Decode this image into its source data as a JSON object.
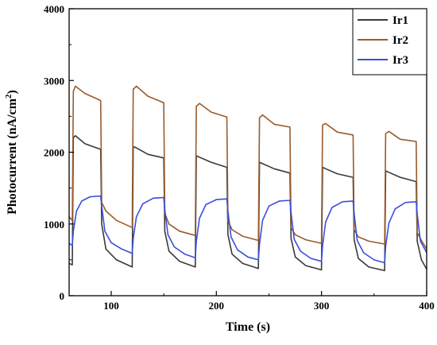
{
  "chart_data": {
    "type": "line",
    "xlabel": "Time (s)",
    "ylabel_main": "Photocurrent (nA/cm",
    "ylabel_sup": "2",
    "ylabel_tail": ")",
    "xlim": [
      60,
      400
    ],
    "ylim": [
      0,
      4000
    ],
    "x_ticks": [
      100,
      200,
      300,
      400
    ],
    "x_ticks_minor": [
      150,
      250,
      350
    ],
    "y_ticks": [
      0,
      1000,
      2000,
      3000,
      4000
    ],
    "y_ticks_minor": [
      500,
      1500,
      2500,
      3500
    ],
    "legend_position": "top-right",
    "series": [
      {
        "name": "Ir1",
        "color": "#3a3a3a",
        "points": [
          [
            60,
            450
          ],
          [
            63,
            430
          ],
          [
            64,
            2200
          ],
          [
            66,
            2230
          ],
          [
            75,
            2120
          ],
          [
            90,
            2040
          ],
          [
            91,
            1000
          ],
          [
            95,
            650
          ],
          [
            105,
            500
          ],
          [
            120,
            400
          ],
          [
            121,
            2080
          ],
          [
            124,
            2060
          ],
          [
            135,
            1970
          ],
          [
            150,
            1920
          ],
          [
            151,
            900
          ],
          [
            155,
            620
          ],
          [
            165,
            480
          ],
          [
            180,
            400
          ],
          [
            181,
            1950
          ],
          [
            184,
            1930
          ],
          [
            195,
            1860
          ],
          [
            210,
            1790
          ],
          [
            211,
            850
          ],
          [
            215,
            580
          ],
          [
            225,
            450
          ],
          [
            240,
            380
          ],
          [
            241,
            1860
          ],
          [
            244,
            1840
          ],
          [
            255,
            1770
          ],
          [
            270,
            1710
          ],
          [
            271,
            800
          ],
          [
            275,
            540
          ],
          [
            285,
            420
          ],
          [
            300,
            360
          ],
          [
            301,
            1790
          ],
          [
            304,
            1770
          ],
          [
            315,
            1700
          ],
          [
            330,
            1650
          ],
          [
            331,
            780
          ],
          [
            335,
            520
          ],
          [
            345,
            400
          ],
          [
            360,
            350
          ],
          [
            361,
            1740
          ],
          [
            364,
            1720
          ],
          [
            375,
            1650
          ],
          [
            390,
            1590
          ],
          [
            391,
            760
          ],
          [
            395,
            500
          ],
          [
            400,
            370
          ]
        ]
      },
      {
        "name": "Ir2",
        "color": "#9a5b2a",
        "points": [
          [
            60,
            1100
          ],
          [
            63,
            1050
          ],
          [
            64,
            2850
          ],
          [
            66,
            2920
          ],
          [
            75,
            2820
          ],
          [
            90,
            2720
          ],
          [
            91,
            1300
          ],
          [
            95,
            1180
          ],
          [
            105,
            1050
          ],
          [
            120,
            950
          ],
          [
            121,
            2880
          ],
          [
            124,
            2920
          ],
          [
            135,
            2780
          ],
          [
            150,
            2690
          ],
          [
            151,
            1150
          ],
          [
            155,
            1000
          ],
          [
            165,
            900
          ],
          [
            180,
            840
          ],
          [
            181,
            2640
          ],
          [
            184,
            2680
          ],
          [
            195,
            2560
          ],
          [
            210,
            2490
          ],
          [
            211,
            1040
          ],
          [
            215,
            920
          ],
          [
            225,
            830
          ],
          [
            240,
            770
          ],
          [
            241,
            2480
          ],
          [
            244,
            2520
          ],
          [
            255,
            2390
          ],
          [
            270,
            2350
          ],
          [
            271,
            950
          ],
          [
            275,
            850
          ],
          [
            285,
            780
          ],
          [
            300,
            730
          ],
          [
            301,
            2380
          ],
          [
            304,
            2400
          ],
          [
            315,
            2280
          ],
          [
            330,
            2240
          ],
          [
            331,
            920
          ],
          [
            335,
            820
          ],
          [
            345,
            760
          ],
          [
            360,
            720
          ],
          [
            361,
            2260
          ],
          [
            364,
            2290
          ],
          [
            375,
            2180
          ],
          [
            390,
            2150
          ],
          [
            391,
            880
          ],
          [
            395,
            770
          ],
          [
            400,
            650
          ]
        ]
      },
      {
        "name": "Ir3",
        "color": "#3b4fd8",
        "points": [
          [
            60,
            730
          ],
          [
            63,
            700
          ],
          [
            64,
            900
          ],
          [
            67,
            1180
          ],
          [
            72,
            1320
          ],
          [
            80,
            1380
          ],
          [
            90,
            1390
          ],
          [
            91,
            1250
          ],
          [
            94,
            900
          ],
          [
            100,
            740
          ],
          [
            110,
            650
          ],
          [
            120,
            590
          ],
          [
            121,
            800
          ],
          [
            124,
            1100
          ],
          [
            130,
            1280
          ],
          [
            140,
            1360
          ],
          [
            150,
            1370
          ],
          [
            151,
            1200
          ],
          [
            154,
            850
          ],
          [
            160,
            680
          ],
          [
            170,
            580
          ],
          [
            180,
            530
          ],
          [
            181,
            760
          ],
          [
            184,
            1080
          ],
          [
            190,
            1270
          ],
          [
            200,
            1340
          ],
          [
            210,
            1350
          ],
          [
            211,
            1180
          ],
          [
            214,
            820
          ],
          [
            220,
            640
          ],
          [
            230,
            540
          ],
          [
            240,
            500
          ],
          [
            241,
            720
          ],
          [
            244,
            1050
          ],
          [
            250,
            1250
          ],
          [
            260,
            1320
          ],
          [
            270,
            1330
          ],
          [
            271,
            1160
          ],
          [
            274,
            790
          ],
          [
            280,
            620
          ],
          [
            290,
            520
          ],
          [
            300,
            480
          ],
          [
            301,
            700
          ],
          [
            304,
            1030
          ],
          [
            310,
            1230
          ],
          [
            320,
            1310
          ],
          [
            330,
            1320
          ],
          [
            331,
            1150
          ],
          [
            334,
            770
          ],
          [
            340,
            600
          ],
          [
            350,
            500
          ],
          [
            360,
            460
          ],
          [
            361,
            690
          ],
          [
            364,
            1010
          ],
          [
            370,
            1210
          ],
          [
            380,
            1300
          ],
          [
            390,
            1310
          ],
          [
            391,
            1140
          ],
          [
            394,
            760
          ],
          [
            400,
            600
          ]
        ]
      }
    ]
  }
}
